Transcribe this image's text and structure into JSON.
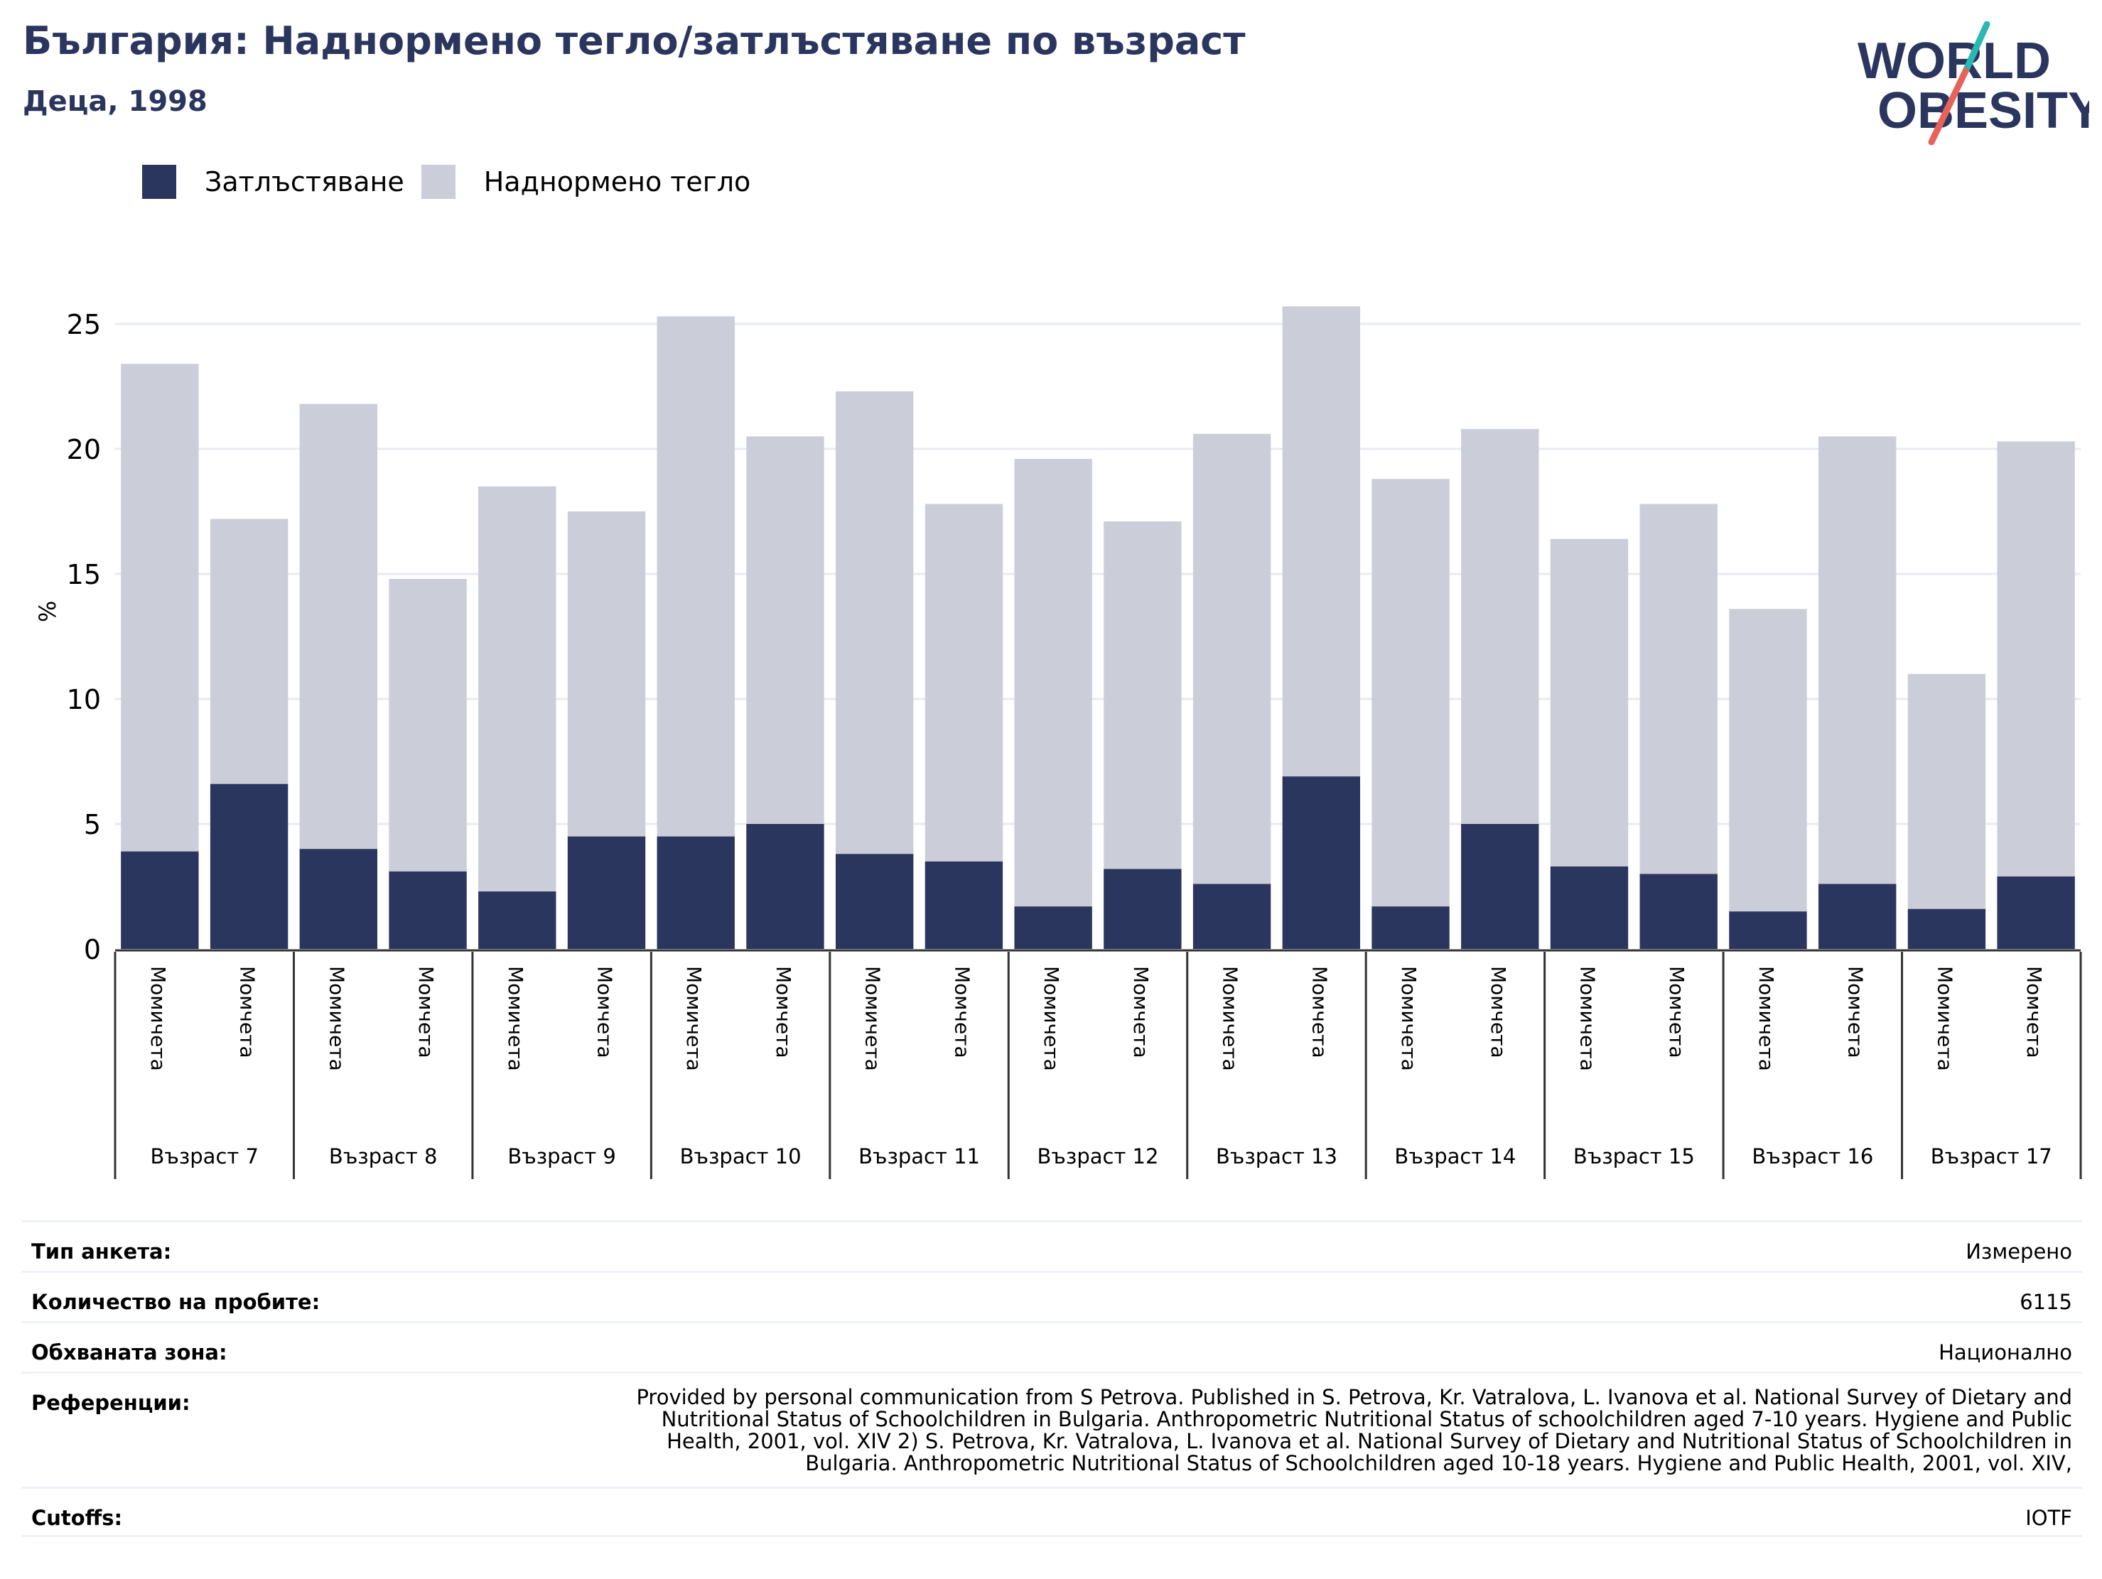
{
  "header": {
    "title": "България: Наднормено тегло/затлъстяване по възраст",
    "subtitle": "Деца, 1998"
  },
  "logo": {
    "line1": "WORLD",
    "line2": "OBESITY",
    "accent1": "#2bb7b3",
    "accent2": "#e8625a",
    "color": "#2b365f"
  },
  "colors": {
    "obesity": "#2b365f",
    "overweight": "#cbcdd9",
    "grid": "#e9ebf2",
    "axis": "#333333"
  },
  "legend": [
    {
      "label": "Затлъстяване",
      "color": "#2b365f"
    },
    {
      "label": "Наднормено тегло",
      "color": "#cbcdd9"
    }
  ],
  "chart_data": {
    "type": "bar",
    "stacked": true,
    "ylabel": "%",
    "ylim": [
      0,
      27
    ],
    "yticks": [
      0,
      5,
      10,
      15,
      20,
      25
    ],
    "grid": true,
    "legend_position": "top-left",
    "groups": [
      "Възраст 7",
      "Възраст 8",
      "Възраст 9",
      "Възраст 10",
      "Възраст 11",
      "Възраст 12",
      "Възраст 13",
      "Възраст 14",
      "Възраст 15",
      "Възраст 16",
      "Възраст 17"
    ],
    "subcategories": [
      "Момичета",
      "Момчета"
    ],
    "series": [
      {
        "name": "Затлъстяване",
        "values": [
          3.9,
          6.6,
          4.0,
          3.1,
          2.3,
          4.5,
          4.5,
          5.0,
          3.8,
          3.5,
          1.7,
          3.2,
          2.6,
          6.9,
          1.7,
          5.0,
          3.3,
          3.0,
          1.5,
          2.6,
          1.6,
          2.9
        ]
      },
      {
        "name": "Наднормено тегло",
        "values": [
          19.5,
          10.6,
          17.8,
          11.7,
          16.2,
          13.0,
          20.8,
          15.5,
          18.5,
          14.3,
          17.9,
          13.9,
          18.0,
          18.8,
          17.1,
          15.8,
          13.1,
          14.8,
          12.1,
          17.9,
          9.4,
          17.4
        ]
      }
    ]
  },
  "info": {
    "survey_type": {
      "label": "Тип анкета:",
      "value": "Измерено"
    },
    "sample_size": {
      "label": "Количество на пробите:",
      "value": "6115"
    },
    "area": {
      "label": "Обхваната зона:",
      "value": "Национално"
    },
    "references": {
      "label": "Референции:",
      "value": "Provided by personal communication from S Petrova. Published in S. Petrova, Kr. Vatralova, L. Ivanova et al. National Survey of Dietary and Nutritional Status of Schoolchildren in Bulgaria. Anthropometric Nutritional Status of schoolchildren aged 7-10 years. Hygiene and Public Health, 2001, vol. XIV 2) S. Petrova, Kr. Vatralova, L. Ivanova et al. National Survey of Dietary and Nutritional Status of Schoolchildren in Bulgaria. Anthropometric Nutritional Status of Schoolchildren aged 10-18 years. Hygiene and Public Health, 2001, vol. XIV,"
    },
    "cutoffs": {
      "label": "Cutoffs:",
      "value": "IOTF"
    }
  }
}
